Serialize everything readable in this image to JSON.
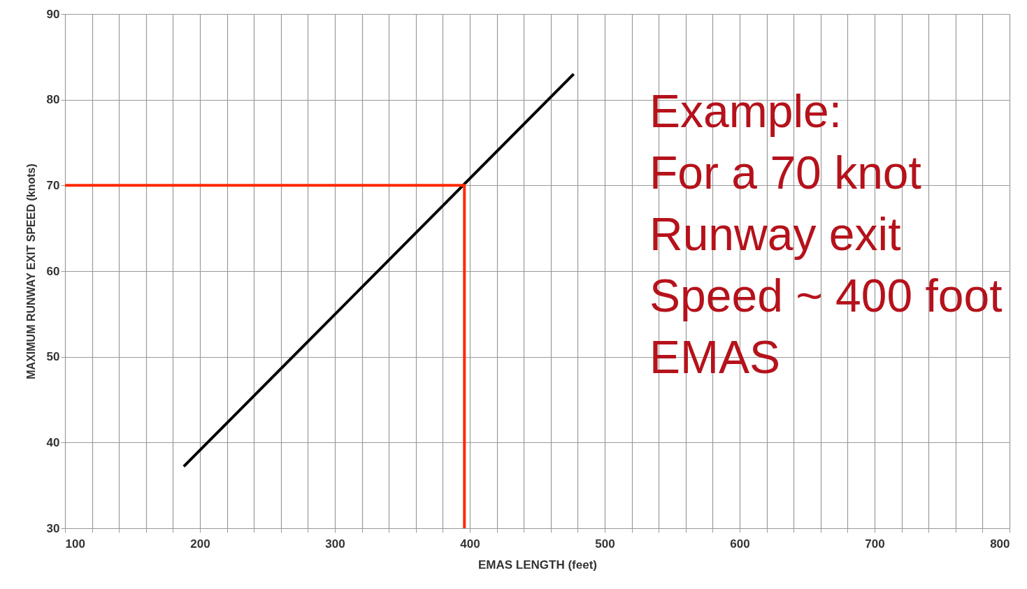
{
  "chart_data": {
    "type": "line",
    "xlabel": "EMAS LENGTH (feet)",
    "ylabel": "MAXIMUM RUNWAY EXIT SPEED (knots)",
    "xlim": [
      100,
      800
    ],
    "xticks": [
      100,
      {
        "value": 120,
        "label": null
      },
      {
        "value": 140,
        "label": null
      },
      {
        "value": 160,
        "label": null
      },
      {
        "value": 180,
        "label": null
      },
      200,
      {
        "value": 220,
        "label": null
      },
      {
        "value": 240,
        "label": null
      },
      {
        "value": 260,
        "label": null
      },
      {
        "value": 280,
        "label": null
      },
      300,
      {
        "value": 320,
        "label": null
      },
      {
        "value": 340,
        "label": null
      },
      {
        "value": 360,
        "label": null
      },
      {
        "value": 380,
        "label": null
      },
      400,
      {
        "value": 420,
        "label": null
      },
      {
        "value": 440,
        "label": null
      },
      {
        "value": 460,
        "label": null
      },
      {
        "value": 480,
        "label": null
      },
      500,
      {
        "value": 520,
        "label": null
      },
      {
        "value": 540,
        "label": null
      },
      {
        "value": 560,
        "label": null
      },
      {
        "value": 580,
        "label": null
      },
      600,
      {
        "value": 620,
        "label": null
      },
      {
        "value": 640,
        "label": null
      },
      {
        "value": 660,
        "label": null
      },
      {
        "value": 680,
        "label": null
      },
      700,
      {
        "value": 720,
        "label": null
      },
      {
        "value": 740,
        "label": null
      },
      {
        "value": 760,
        "label": null
      },
      {
        "value": 780,
        "label": null
      },
      800
    ],
    "ylim": [
      30,
      90
    ],
    "yticks": [
      30,
      40,
      50,
      60,
      70,
      80,
      90
    ],
    "grid": true,
    "series": [
      {
        "color": "#000000",
        "x": [
          188,
          477
        ],
        "values": [
          37.2,
          83
        ]
      },
      {
        "color": "#ff2a00",
        "x": [
          100,
          396,
          396
        ],
        "values": [
          70,
          70,
          30
        ]
      }
    ],
    "annotations": [
      "Example:\nFor a 70 knot\nRunway exit\nSpeed ~ 400 foot\nEMAS"
    ]
  }
}
